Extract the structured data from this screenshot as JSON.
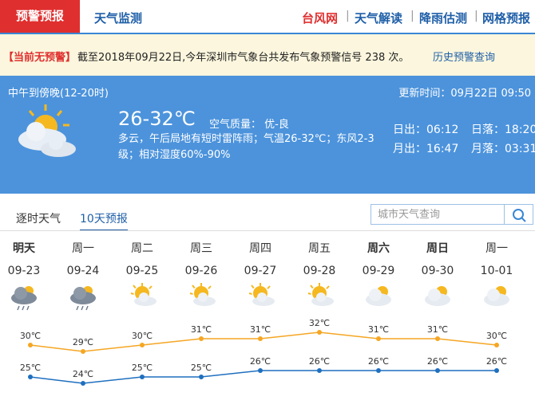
{
  "nav": {
    "active": "预警预报",
    "tabs": [
      "天气监测"
    ],
    "links": [
      "台风网",
      "天气解读",
      "降雨估测",
      "网格预报"
    ]
  },
  "alert": {
    "status": "【当前无预警】",
    "message": "截至2018年09月22日,今年深圳市气象台共发布气象预警信号 238 次。",
    "link": "历史预警查询"
  },
  "current": {
    "period": "中午到傍晚(12-20时)",
    "updated": "更新时间：09月22日 09:50",
    "temp_range": "26-32℃",
    "air_quality": "空气质量： 优-良",
    "description": "多云，午后局地有短时雷阵雨；气温26-32℃；东风2-3级；相对湿度60%-90%",
    "sunrise": "日出：06:12",
    "sunset": "日落：18:20",
    "moonrise": "月出：16:47",
    "moonset": "月落：03:31"
  },
  "forecast": {
    "tabs": [
      "逐时天气",
      "10天预报"
    ],
    "search_placeholder": "城市天气查询",
    "days": [
      "明天",
      "周一",
      "周二",
      "周三",
      "周四",
      "周五",
      "周六",
      "周日",
      "周一"
    ],
    "dates": [
      "09-23",
      "09-24",
      "09-25",
      "09-26",
      "09-27",
      "09-28",
      "09-29",
      "09-30",
      "10-01"
    ],
    "high": {
      "color": "#f5a623",
      "values": [
        30,
        29,
        30,
        31,
        31,
        32,
        31,
        31,
        30
      ],
      "value_labels": [
        "30℃",
        "29℃",
        "30℃",
        "31℃",
        "31℃",
        "32℃",
        "31℃",
        "31℃",
        "30℃"
      ]
    },
    "low": {
      "color": "#1f6fbf",
      "values": [
        25,
        24,
        25,
        25,
        26,
        26,
        26,
        26,
        26
      ],
      "value_labels": [
        "25℃",
        "24℃",
        "25℃",
        "25℃",
        "26℃",
        "26℃",
        "26℃",
        "26℃",
        "26℃"
      ]
    }
  }
}
